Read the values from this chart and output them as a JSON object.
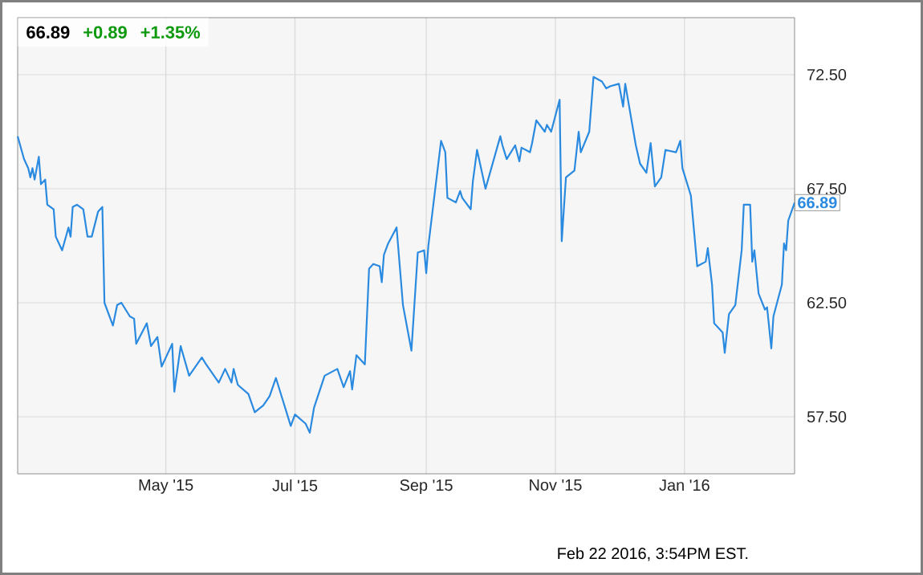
{
  "chart_data": {
    "type": "line",
    "title": "66.89",
    "x": [
      "2015-02-20",
      "2015-02-23",
      "2015-02-25",
      "2015-02-26",
      "2015-02-27",
      "2015-02-28",
      "2015-03-02",
      "2015-03-03",
      "2015-03-05",
      "2015-03-06",
      "2015-03-09",
      "2015-03-10",
      "2015-03-13",
      "2015-03-16",
      "2015-03-17",
      "2015-03-18",
      "2015-03-20",
      "2015-03-23",
      "2015-03-25",
      "2015-03-27",
      "2015-03-30",
      "2015-04-01",
      "2015-04-02",
      "2015-04-06",
      "2015-04-08",
      "2015-04-10",
      "2015-04-14",
      "2015-04-16",
      "2015-04-17",
      "2015-04-22",
      "2015-04-24",
      "2015-04-27",
      "2015-04-29",
      "2015-05-04",
      "2015-05-05",
      "2015-05-08",
      "2015-05-12",
      "2015-05-18",
      "2015-05-20",
      "2015-05-26",
      "2015-05-29",
      "2015-06-01",
      "2015-06-02",
      "2015-06-04",
      "2015-06-09",
      "2015-06-12",
      "2015-06-16",
      "2015-06-19",
      "2015-06-22",
      "2015-06-25",
      "2015-06-29",
      "2015-07-01",
      "2015-07-06",
      "2015-07-08",
      "2015-07-10",
      "2015-07-15",
      "2015-07-21",
      "2015-07-24",
      "2015-07-27",
      "2015-07-28",
      "2015-07-30",
      "2015-08-03",
      "2015-08-05",
      "2015-08-07",
      "2015-08-10",
      "2015-08-11",
      "2015-08-12",
      "2015-08-14",
      "2015-08-18",
      "2015-08-21",
      "2015-08-25",
      "2015-08-28",
      "2015-08-31",
      "2015-09-01",
      "2015-09-02",
      "2015-09-08",
      "2015-09-10",
      "2015-09-11",
      "2015-09-15",
      "2015-09-17",
      "2015-09-18",
      "2015-09-22",
      "2015-09-23",
      "2015-09-25",
      "2015-09-29",
      "2015-10-06",
      "2015-10-07",
      "2015-10-09",
      "2015-10-13",
      "2015-10-15",
      "2015-10-16",
      "2015-10-20",
      "2015-10-21",
      "2015-10-23",
      "2015-10-27",
      "2015-10-28",
      "2015-10-30",
      "2015-11-03",
      "2015-11-04",
      "2015-11-06",
      "2015-11-10",
      "2015-11-12",
      "2015-11-13",
      "2015-11-17",
      "2015-11-19",
      "2015-11-23",
      "2015-11-25",
      "2015-11-27",
      "2015-12-01",
      "2015-12-03",
      "2015-12-04",
      "2015-12-09",
      "2015-12-11",
      "2015-12-14",
      "2015-12-16",
      "2015-12-18",
      "2015-12-21",
      "2015-12-23",
      "2015-12-28",
      "2015-12-30",
      "2015-12-31",
      "2016-01-04",
      "2016-01-07",
      "2016-01-11",
      "2016-01-12",
      "2016-01-14",
      "2016-01-15",
      "2016-01-19",
      "2016-01-20",
      "2016-01-22",
      "2016-01-25",
      "2016-01-28",
      "2016-01-29",
      "2016-02-01",
      "2016-02-02",
      "2016-02-03",
      "2016-02-05",
      "2016-02-08",
      "2016-02-09",
      "2016-02-11",
      "2016-02-12",
      "2016-02-16",
      "2016-02-17",
      "2016-02-18",
      "2016-02-19",
      "2016-02-22"
    ],
    "series": [
      {
        "color": "#2a8ae0",
        "values": [
          69.8,
          68.8,
          68.4,
          68.0,
          68.4,
          67.9,
          68.9,
          67.7,
          67.9,
          66.8,
          66.6,
          65.4,
          64.8,
          65.8,
          65.4,
          66.7,
          66.8,
          66.6,
          65.4,
          65.4,
          66.5,
          66.7,
          62.5,
          61.5,
          62.4,
          62.5,
          61.9,
          61.8,
          60.7,
          61.6,
          60.6,
          61.0,
          59.7,
          60.7,
          58.6,
          60.6,
          59.3,
          60.1,
          59.8,
          59.0,
          59.6,
          59.0,
          59.6,
          58.9,
          58.5,
          57.7,
          58.0,
          58.4,
          59.2,
          58.3,
          57.1,
          57.6,
          57.2,
          56.8,
          57.9,
          59.3,
          59.6,
          58.8,
          59.5,
          58.7,
          60.2,
          59.8,
          64.0,
          64.2,
          64.1,
          63.4,
          64.6,
          65.1,
          65.8,
          62.4,
          60.4,
          64.7,
          64.8,
          63.8,
          65.0,
          69.6,
          69.1,
          67.1,
          66.9,
          67.4,
          67.1,
          66.6,
          67.8,
          69.2,
          67.5,
          69.8,
          69.4,
          68.8,
          69.4,
          68.7,
          69.3,
          69.1,
          69.5,
          70.5,
          70.0,
          70.3,
          70.0,
          71.4,
          65.2,
          68.0,
          68.3,
          70.0,
          69.1,
          70.0,
          72.4,
          72.2,
          71.9,
          72.0,
          72.1,
          71.1,
          72.1,
          69.4,
          68.6,
          68.2,
          69.5,
          67.6,
          68.0,
          69.2,
          69.1,
          69.6,
          68.4,
          67.2,
          64.1,
          64.3,
          64.9,
          63.3,
          61.6,
          61.2,
          60.3,
          62.0,
          62.4,
          64.8,
          66.8,
          66.8,
          64.3,
          64.8,
          62.9,
          62.2,
          62.3,
          60.5,
          61.9,
          63.3,
          65.1,
          64.8,
          66.1,
          66.89
        ]
      }
    ],
    "xlim": [
      "2015-02-20",
      "2016-02-22"
    ],
    "xticks": [
      {
        "value": "2015-05-01",
        "label": "May '15"
      },
      {
        "value": "2015-07-01",
        "label": "Jul '15"
      },
      {
        "value": "2015-09-01",
        "label": "Sep '15"
      },
      {
        "value": "2015-11-01",
        "label": "Nov '15"
      },
      {
        "value": "2016-01-01",
        "label": "Jan '16"
      }
    ],
    "ylim": [
      55,
      75
    ],
    "yticks": [
      {
        "value": 57.5,
        "label": "57.50"
      },
      {
        "value": 62.5,
        "label": "62.50"
      },
      {
        "value": 67.5,
        "label": "67.50"
      },
      {
        "value": 72.5,
        "label": "72.50"
      }
    ],
    "grid": true,
    "annotations": [
      "+0.89",
      "+1.35%",
      {
        "text": "66.89",
        "x": "2016-02-22",
        "y": 66.89
      },
      "Feb 22 2016, 3:54PM EST."
    ]
  }
}
